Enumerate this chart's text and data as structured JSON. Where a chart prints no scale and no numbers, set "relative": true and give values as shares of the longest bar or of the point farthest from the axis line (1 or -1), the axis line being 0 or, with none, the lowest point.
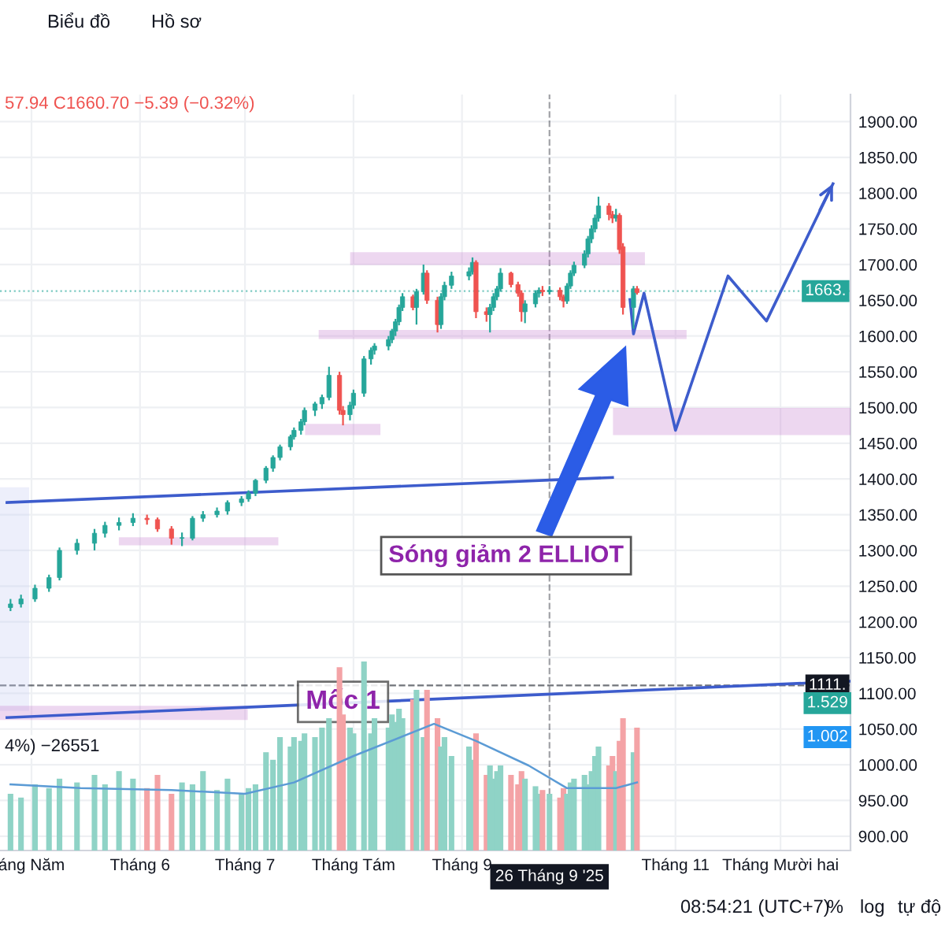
{
  "chart_data": [
    {
      "type": "candlestick",
      "x": [
        "2025-04-25",
        "2025-04-28",
        "2025-05-02",
        "2025-05-06",
        "2025-05-09",
        "2025-05-14",
        "2025-05-19",
        "2025-05-22",
        "2025-05-26",
        "2025-05-30",
        "2025-06-03",
        "2025-06-06",
        "2025-06-10",
        "2025-06-13",
        "2025-06-16",
        "2025-06-19",
        "2025-06-23",
        "2025-06-26",
        "2025-06-30",
        "2025-07-02",
        "2025-07-04",
        "2025-07-07",
        "2025-07-09",
        "2025-07-11",
        "2025-07-14",
        "2025-07-15",
        "2025-07-17",
        "2025-07-18",
        "2025-07-21",
        "2025-07-23",
        "2025-07-25",
        "2025-07-28",
        "2025-07-29",
        "2025-07-31",
        "2025-08-01",
        "2025-08-04",
        "2025-08-06",
        "2025-08-07",
        "2025-08-11",
        "2025-08-12",
        "2025-08-13",
        "2025-08-14",
        "2025-08-15",
        "2025-08-18",
        "2025-08-19",
        "2025-08-21",
        "2025-08-22",
        "2025-08-25",
        "2025-08-26",
        "2025-08-27",
        "2025-08-29",
        "2025-09-03",
        "2025-09-04",
        "2025-09-05",
        "2025-09-08",
        "2025-09-09",
        "2025-09-10",
        "2025-09-11",
        "2025-09-12",
        "2025-09-15",
        "2025-09-17",
        "2025-09-18",
        "2025-09-19",
        "2025-09-22",
        "2025-09-23",
        "2025-09-24",
        "2025-09-26",
        "2025-09-29",
        "2025-09-30",
        "2025-10-01",
        "2025-10-02",
        "2025-10-03",
        "2025-10-06",
        "2025-10-07",
        "2025-10-08",
        "2025-10-09",
        "2025-10-10",
        "2025-10-13",
        "2025-10-14",
        "2025-10-15",
        "2025-10-16",
        "2025-10-17",
        "2025-10-20",
        "2025-10-21"
      ],
      "ohlc": [
        [
          1220,
          1232,
          1215,
          1225
        ],
        [
          1225,
          1238,
          1220,
          1232
        ],
        [
          1232,
          1252,
          1228,
          1247
        ],
        [
          1247,
          1266,
          1242,
          1262
        ],
        [
          1262,
          1304,
          1258,
          1300
        ],
        [
          1300,
          1316,
          1294,
          1310
        ],
        [
          1310,
          1330,
          1300,
          1324
        ],
        [
          1324,
          1340,
          1318,
          1335
        ],
        [
          1335,
          1346,
          1328,
          1339
        ],
        [
          1339,
          1352,
          1334,
          1345
        ],
        [
          1345,
          1350,
          1336,
          1343
        ],
        [
          1343,
          1346,
          1326,
          1330
        ],
        [
          1330,
          1334,
          1308,
          1317
        ],
        [
          1317,
          1325,
          1306,
          1317
        ],
        [
          1317,
          1348,
          1314,
          1345
        ],
        [
          1345,
          1355,
          1340,
          1350
        ],
        [
          1350,
          1360,
          1346,
          1355
        ],
        [
          1355,
          1370,
          1350,
          1367
        ],
        [
          1367,
          1376,
          1362,
          1372
        ],
        [
          1372,
          1384,
          1368,
          1380
        ],
        [
          1380,
          1400,
          1376,
          1398
        ],
        [
          1398,
          1418,
          1394,
          1415
        ],
        [
          1415,
          1433,
          1410,
          1430
        ],
        [
          1430,
          1448,
          1426,
          1445
        ],
        [
          1445,
          1462,
          1440,
          1459
        ],
        [
          1459,
          1472,
          1455,
          1468
        ],
        [
          1468,
          1484,
          1462,
          1480
        ],
        [
          1480,
          1500,
          1475,
          1496
        ],
        [
          1496,
          1508,
          1488,
          1505
        ],
        [
          1505,
          1518,
          1498,
          1514
        ],
        [
          1514,
          1557,
          1510,
          1545
        ],
        [
          1545,
          1550,
          1490,
          1496
        ],
        [
          1496,
          1502,
          1475,
          1490
        ],
        [
          1490,
          1508,
          1482,
          1503
        ],
        [
          1503,
          1525,
          1498,
          1520
        ],
        [
          1520,
          1572,
          1515,
          1568
        ],
        [
          1568,
          1584,
          1560,
          1580
        ],
        [
          1580,
          1590,
          1574,
          1586
        ],
        [
          1586,
          1600,
          1580,
          1595
        ],
        [
          1595,
          1610,
          1590,
          1607
        ],
        [
          1607,
          1624,
          1600,
          1620
        ],
        [
          1620,
          1644,
          1615,
          1640
        ],
        [
          1640,
          1660,
          1635,
          1655
        ],
        [
          1655,
          1658,
          1636,
          1640
        ],
        [
          1640,
          1666,
          1616,
          1662
        ],
        [
          1662,
          1700,
          1658,
          1688
        ],
        [
          1688,
          1692,
          1645,
          1650
        ],
        [
          1650,
          1655,
          1605,
          1616
        ],
        [
          1616,
          1660,
          1610,
          1655
        ],
        [
          1655,
          1676,
          1650,
          1671
        ],
        [
          1671,
          1690,
          1666,
          1684
        ],
        [
          1684,
          1696,
          1678,
          1690
        ],
        [
          1690,
          1710,
          1686,
          1703
        ],
        [
          1703,
          1706,
          1625,
          1634
        ],
        [
          1634,
          1640,
          1620,
          1630
        ],
        [
          1630,
          1645,
          1605,
          1640
        ],
        [
          1640,
          1660,
          1635,
          1655
        ],
        [
          1655,
          1670,
          1650,
          1666
        ],
        [
          1666,
          1695,
          1662,
          1688
        ],
        [
          1688,
          1690,
          1668,
          1672
        ],
        [
          1672,
          1676,
          1655,
          1660
        ],
        [
          1660,
          1664,
          1620,
          1634
        ],
        [
          1634,
          1650,
          1618,
          1645
        ],
        [
          1645,
          1664,
          1640,
          1660
        ],
        [
          1660,
          1668,
          1654,
          1664
        ],
        [
          1664,
          1670,
          1656,
          1662
        ],
        [
          1662,
          1670,
          1658,
          1664
        ],
        [
          1664,
          1668,
          1650,
          1655
        ],
        [
          1655,
          1658,
          1640,
          1649
        ],
        [
          1649,
          1674,
          1645,
          1670
        ],
        [
          1670,
          1692,
          1666,
          1688
        ],
        [
          1688,
          1704,
          1684,
          1699
        ],
        [
          1699,
          1720,
          1695,
          1715
        ],
        [
          1715,
          1740,
          1710,
          1736
        ],
        [
          1736,
          1755,
          1730,
          1750
        ],
        [
          1750,
          1770,
          1745,
          1765
        ],
        [
          1765,
          1795,
          1760,
          1782
        ],
        [
          1782,
          1786,
          1762,
          1770
        ],
        [
          1770,
          1775,
          1758,
          1765
        ],
        [
          1765,
          1778,
          1760,
          1769
        ],
        [
          1769,
          1772,
          1715,
          1721
        ],
        [
          1725,
          1730,
          1630,
          1640
        ],
        [
          1640,
          1670,
          1610,
          1666.09
        ],
        [
          1666.09,
          1670,
          1657.94,
          1660.7
        ]
      ],
      "xlim": [
        "2025-04-22",
        "2025-12-21"
      ],
      "xticks": [
        {
          "value": "2025-05-01",
          "label": "áng Năm"
        },
        {
          "value": "2025-06-01",
          "label": "Tháng 6"
        },
        {
          "value": "2025-07-01",
          "label": "Tháng 7"
        },
        {
          "value": "2025-08-01",
          "label": "Tháng Tám"
        },
        {
          "value": "2025-09-01",
          "label": "Tháng 9"
        },
        {
          "value": "2025-11-01",
          "label": "Tháng 11"
        },
        {
          "value": "2025-12-01",
          "label": "Tháng Mười hai"
        }
      ],
      "ylim": [
        880,
        1938
      ],
      "yticks": [
        {
          "value": 900,
          "label": "900.00"
        },
        {
          "value": 950,
          "label": "950.00"
        },
        {
          "value": 1000,
          "label": "1000.00"
        },
        {
          "value": 1050,
          "label": "1050.00"
        },
        {
          "value": 1100,
          "label": "1100.00"
        },
        {
          "value": 1150,
          "label": "1150.00"
        },
        {
          "value": 1200,
          "label": "1200.00"
        },
        {
          "value": 1250,
          "label": "1250.00"
        },
        {
          "value": 1300,
          "label": "1300.00"
        },
        {
          "value": 1350,
          "label": "1350.00"
        },
        {
          "value": 1400,
          "label": "1400.00"
        },
        {
          "value": 1450,
          "label": "1450.00"
        },
        {
          "value": 1500,
          "label": "1500.00"
        },
        {
          "value": 1550,
          "label": "1550.00"
        },
        {
          "value": 1600,
          "label": "1600.00"
        },
        {
          "value": 1650,
          "label": "1650.00"
        },
        {
          "value": 1700,
          "label": "1700.00"
        },
        {
          "value": 1750,
          "label": "1750.00"
        },
        {
          "value": 1800,
          "label": "1800.00"
        },
        {
          "value": 1850,
          "label": "1850.00"
        },
        {
          "value": 1900,
          "label": "1900.00"
        }
      ],
      "grid": true,
      "series": [
        {
          "type": "line",
          "color": "#3d5ccc",
          "x": [
            "2025-04-24",
            "2025-10-14"
          ],
          "values": [
            1367,
            1402
          ]
        },
        {
          "type": "line",
          "color": "#3d5ccc",
          "x": [
            "2025-04-24",
            "2025-12-21"
          ],
          "values": [
            1066,
            1117
          ]
        },
        {
          "type": "line",
          "color": "#3d5ccc",
          "x": [
            "2025-10-19",
            "2025-10-20",
            "2025-10-23",
            "2025-11-01",
            "2025-11-16",
            "2025-11-27",
            "2025-12-16"
          ],
          "values": [
            1651,
            1603,
            1660,
            1468,
            1684,
            1621,
            1813
          ]
        }
      ],
      "ref_lines": [
        {
          "axis": "y",
          "value": 1663,
          "label": "1663.",
          "color": "#26a69a",
          "line_style": "dotted"
        },
        {
          "axis": "y",
          "value": 1111,
          "label": "1111.",
          "color": "#131722",
          "line_style": "dashed"
        },
        {
          "axis": "x",
          "value": "2025-09-26",
          "label": "26 Tháng 9 '25",
          "color": "#131722",
          "line_style": "dashed"
        }
      ],
      "annotations": [
        "57.94 C1660.70 −5.39 (−0.32%)",
        "Sóng giảm 2 ELLIOT",
        {
          "text": "Mốc 1",
          "x": "2025-07-29",
          "y": 1088
        },
        "Biểu đồ",
        "Hồ sơ",
        "08:54:21 (UTC+7)",
        "%",
        "log",
        "tự độ"
      ]
    },
    {
      "type": "bar",
      "relative": true,
      "tick_labels": false,
      "x": [
        "2025-04-25",
        "2025-04-28",
        "2025-05-02",
        "2025-05-06",
        "2025-05-09",
        "2025-05-14",
        "2025-05-19",
        "2025-05-22",
        "2025-05-26",
        "2025-05-30",
        "2025-06-03",
        "2025-06-06",
        "2025-06-10",
        "2025-06-13",
        "2025-06-16",
        "2025-06-19",
        "2025-06-23",
        "2025-06-26",
        "2025-06-30",
        "2025-07-02",
        "2025-07-04",
        "2025-07-07",
        "2025-07-09",
        "2025-07-11",
        "2025-07-14",
        "2025-07-15",
        "2025-07-17",
        "2025-07-18",
        "2025-07-21",
        "2025-07-23",
        "2025-07-25",
        "2025-07-28",
        "2025-07-29",
        "2025-07-31",
        "2025-08-01",
        "2025-08-04",
        "2025-08-06",
        "2025-08-07",
        "2025-08-11",
        "2025-08-12",
        "2025-08-13",
        "2025-08-14",
        "2025-08-15",
        "2025-08-18",
        "2025-08-19",
        "2025-08-21",
        "2025-08-22",
        "2025-08-25",
        "2025-08-26",
        "2025-08-27",
        "2025-08-29",
        "2025-09-03",
        "2025-09-04",
        "2025-09-05",
        "2025-09-08",
        "2025-09-09",
        "2025-09-10",
        "2025-09-11",
        "2025-09-12",
        "2025-09-15",
        "2025-09-17",
        "2025-09-18",
        "2025-09-19",
        "2025-09-22",
        "2025-09-23",
        "2025-09-24",
        "2025-09-26",
        "2025-09-29",
        "2025-09-30",
        "2025-10-01",
        "2025-10-02",
        "2025-10-03",
        "2025-10-06",
        "2025-10-07",
        "2025-10-08",
        "2025-10-09",
        "2025-10-10",
        "2025-10-13",
        "2025-10-14",
        "2025-10-15",
        "2025-10-16",
        "2025-10-17",
        "2025-10-20",
        "2025-10-21"
      ],
      "xlim": [
        "2025-04-22",
        "2025-12-21"
      ],
      "values": [
        0.3,
        0.28,
        0.35,
        0.33,
        0.38,
        0.36,
        0.4,
        0.35,
        0.42,
        0.38,
        0.33,
        0.4,
        0.3,
        0.36,
        0.35,
        0.42,
        0.32,
        0.38,
        0.3,
        0.33,
        0.35,
        0.52,
        0.48,
        0.6,
        0.55,
        0.6,
        0.58,
        0.62,
        0.6,
        0.65,
        0.7,
        0.97,
        0.72,
        0.65,
        0.62,
        1,
        0.62,
        0.7,
        0.65,
        0.72,
        0.68,
        0.75,
        0.7,
        0.8,
        0.85,
        0.6,
        0.85,
        0.7,
        0.55,
        0.6,
        0.5,
        0.55,
        0.48,
        0.62,
        0.4,
        0.45,
        0.38,
        0.42,
        0.45,
        0.4,
        0.35,
        0.42,
        0.38,
        0.34,
        0.3,
        0.32,
        0.3,
        0.28,
        0.33,
        0.3,
        0.36,
        0.38,
        0.4,
        0.35,
        0.42,
        0.5,
        0.55,
        0.45,
        0.5,
        0.42,
        0.58,
        0.7,
        0.52,
        0.65
      ],
      "colors": [
        "#8fd3c6",
        "#8fd3c6",
        "#8fd3c6",
        "#8fd3c6",
        "#8fd3c6",
        "#8fd3c6",
        "#8fd3c6",
        "#8fd3c6",
        "#8fd3c6",
        "#8fd3c6",
        "#f4a3a6",
        "#f4a3a6",
        "#f4a3a6",
        "#8fd3c6",
        "#8fd3c6",
        "#8fd3c6",
        "#8fd3c6",
        "#8fd3c6",
        "#8fd3c6",
        "#8fd3c6",
        "#8fd3c6",
        "#8fd3c6",
        "#8fd3c6",
        "#8fd3c6",
        "#8fd3c6",
        "#8fd3c6",
        "#8fd3c6",
        "#8fd3c6",
        "#8fd3c6",
        "#8fd3c6",
        "#8fd3c6",
        "#f4a3a6",
        "#f4a3a6",
        "#8fd3c6",
        "#8fd3c6",
        "#8fd3c6",
        "#8fd3c6",
        "#8fd3c6",
        "#8fd3c6",
        "#8fd3c6",
        "#8fd3c6",
        "#8fd3c6",
        "#8fd3c6",
        "#f4a3a6",
        "#8fd3c6",
        "#8fd3c6",
        "#f4a3a6",
        "#f4a3a6",
        "#8fd3c6",
        "#8fd3c6",
        "#8fd3c6",
        "#8fd3c6",
        "#8fd3c6",
        "#f4a3a6",
        "#f4a3a6",
        "#8fd3c6",
        "#8fd3c6",
        "#8fd3c6",
        "#8fd3c6",
        "#f4a3a6",
        "#f4a3a6",
        "#f4a3a6",
        "#8fd3c6",
        "#8fd3c6",
        "#8fd3c6",
        "#f4a3a6",
        "#8fd3c6",
        "#f4a3a6",
        "#f4a3a6",
        "#8fd3c6",
        "#8fd3c6",
        "#8fd3c6",
        "#8fd3c6",
        "#8fd3c6",
        "#8fd3c6",
        "#8fd3c6",
        "#8fd3c6",
        "#f4a3a6",
        "#f4a3a6",
        "#8fd3c6",
        "#f4a3a6",
        "#f4a3a6",
        "#8fd3c6",
        "#f4a3a6"
      ],
      "series": [
        {
          "type": "line",
          "color": "#5b9bd5",
          "x": [
            "2025-04-25",
            "2025-05-15",
            "2025-06-10",
            "2025-07-01",
            "2025-07-15",
            "2025-08-01",
            "2025-08-24",
            "2025-09-05",
            "2025-09-20",
            "2025-10-01",
            "2025-10-15",
            "2025-10-21"
          ],
          "values": [
            0.35,
            0.33,
            0.32,
            0.3,
            0.36,
            0.5,
            0.67,
            0.58,
            0.45,
            0.33,
            0.33,
            0.36
          ]
        }
      ],
      "annotations": [
        "4%) −26551",
        "1.529",
        "1.002"
      ]
    }
  ]
}
